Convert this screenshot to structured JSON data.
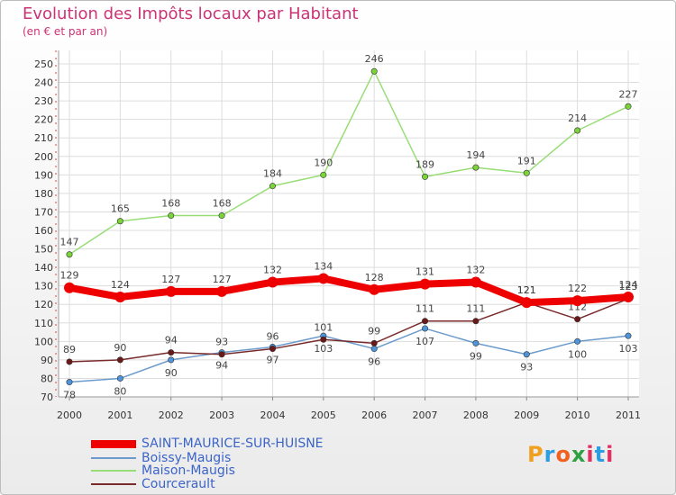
{
  "header": {
    "title": "Evolution des Impôts locaux par Habitant",
    "subtitle": "(en € et par an)"
  },
  "logo": {
    "parts": [
      "P",
      "r",
      "o",
      "x",
      "i",
      "t",
      "i"
    ]
  },
  "chart_data": {
    "type": "line",
    "title": "Evolution des Impôts locaux par Habitant",
    "subtitle": "(en € et par an)",
    "xlabel": "",
    "ylabel": "",
    "x": [
      "2000",
      "2001",
      "2002",
      "2003",
      "2004",
      "2005",
      "2006",
      "2007",
      "2008",
      "2009",
      "2010",
      "2011"
    ],
    "ylim": [
      70,
      250
    ],
    "yticks": [
      70,
      80,
      90,
      100,
      110,
      120,
      130,
      140,
      150,
      160,
      170,
      180,
      190,
      200,
      210,
      220,
      230,
      240,
      250
    ],
    "grid": true,
    "legend_position": "bottom-left",
    "series": [
      {
        "name": "SAINT-MAURICE-SUR-HUISNE",
        "color": "#ee0000",
        "marker": "#ee0000",
        "bold": true,
        "values": [
          129,
          124,
          127,
          127,
          132,
          134,
          128,
          131,
          132,
          121,
          122,
          124
        ],
        "labels": [
          "129",
          "124",
          "127",
          "127",
          "132",
          "134",
          "128",
          "131",
          "132",
          "121",
          "122",
          "124"
        ]
      },
      {
        "name": "Boissy-Maugis",
        "color": "#6b9bcc",
        "marker": "#4f94d8",
        "bold": false,
        "values": [
          78,
          80,
          90,
          94,
          97,
          103,
          96,
          107,
          99,
          93,
          100,
          103
        ],
        "labels": [
          "78",
          "80",
          "90",
          "94",
          "97",
          "103",
          "96",
          "107",
          "99",
          "93",
          "100",
          "103"
        ]
      },
      {
        "name": "Maison-Maugis",
        "color": "#99dd77",
        "marker": "#7bd33a",
        "bold": false,
        "values": [
          147,
          165,
          168,
          168,
          184,
          190,
          246,
          189,
          194,
          191,
          214,
          227
        ],
        "labels": [
          "147",
          "165",
          "168",
          "168",
          "184",
          "190",
          "246",
          "189",
          "194",
          "191",
          "214",
          "227"
        ]
      },
      {
        "name": "Courcerault",
        "color": "#7a2a2a",
        "marker": "#6b1818",
        "bold": false,
        "values": [
          89,
          90,
          94,
          93,
          96,
          101,
          99,
          111,
          111,
          121,
          112,
          123
        ],
        "labels": [
          "89",
          "90",
          "94",
          "93",
          "96",
          "101",
          "99",
          "111",
          "111",
          "121",
          "112",
          "123"
        ]
      }
    ]
  }
}
